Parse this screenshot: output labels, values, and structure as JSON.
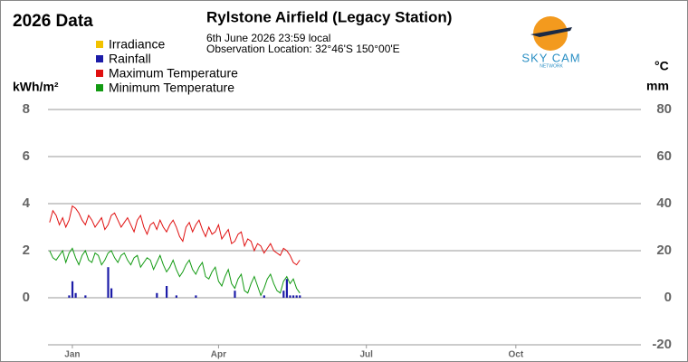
{
  "chart_data": {
    "type": "line",
    "corner_title": "2026 Data",
    "title": "Rylstone Airfield (Legacy Station)",
    "subtitle_lines": [
      "6th June 2026  23:59 local",
      "Observation Location: 32°46'S 150°00'E"
    ],
    "logo": {
      "text": "SKY CAM",
      "subtext": "NETWORK"
    },
    "ylabel": "kWh/m²",
    "y2labels": [
      "°C",
      "mm"
    ],
    "xlim": [
      0,
      365
    ],
    "xticks": [
      {
        "value": 15,
        "label": "Jan"
      },
      {
        "value": 105,
        "label": "Apr"
      },
      {
        "value": 196,
        "label": "Jul"
      },
      {
        "value": 288,
        "label": "Oct"
      }
    ],
    "ylim": [
      -2,
      8
    ],
    "yticks": [
      0,
      2,
      4,
      6,
      8
    ],
    "y2lim": [
      -20,
      80
    ],
    "y2ticks": [
      -20,
      0,
      20,
      40,
      60,
      80
    ],
    "grid": true,
    "legend": "top-left",
    "x": [
      1,
      3,
      5,
      7,
      9,
      11,
      13,
      15,
      17,
      19,
      21,
      23,
      25,
      27,
      29,
      31,
      33,
      35,
      37,
      39,
      41,
      43,
      45,
      47,
      49,
      51,
      53,
      55,
      57,
      59,
      61,
      63,
      65,
      67,
      69,
      71,
      73,
      75,
      77,
      79,
      81,
      83,
      85,
      87,
      89,
      91,
      93,
      95,
      97,
      99,
      101,
      103,
      105,
      107,
      109,
      111,
      113,
      115,
      117,
      119,
      121,
      123,
      125,
      127,
      129,
      131,
      133,
      135,
      137,
      139,
      141,
      143,
      145,
      147,
      149,
      151,
      153,
      155
    ],
    "series": [
      {
        "name": "Irradiance",
        "color": "#f2c200",
        "kind": "line",
        "values": [
          null,
          null,
          null,
          null,
          null,
          null,
          null,
          null,
          null,
          null,
          null,
          null,
          null,
          null,
          null,
          null,
          null,
          null,
          null,
          null,
          null,
          null,
          null,
          null,
          null,
          null,
          null,
          null,
          null,
          null,
          null,
          null,
          null,
          null,
          null,
          null,
          null,
          null,
          null,
          null,
          null,
          null,
          null,
          null,
          null,
          null,
          null,
          null,
          null,
          null,
          null,
          null,
          null,
          null,
          null,
          null,
          null,
          null,
          null,
          null,
          null,
          null,
          null,
          null,
          null,
          null,
          null,
          null,
          null,
          null,
          null,
          null,
          null,
          null,
          null,
          null,
          null,
          null
        ]
      },
      {
        "name": "Rainfall",
        "color": "#1c1ca8",
        "kind": "bar",
        "axis": "y2",
        "values": [
          0,
          0,
          0,
          0,
          0,
          0,
          1,
          7,
          2,
          0,
          0,
          1,
          0,
          0,
          0,
          0,
          0,
          0,
          13,
          4,
          0,
          0,
          0,
          0,
          0,
          0,
          0,
          0,
          0,
          0,
          0,
          0,
          0,
          2,
          0,
          0,
          5,
          0,
          0,
          1,
          0,
          0,
          0,
          0,
          0,
          1,
          0,
          0,
          0,
          0,
          0,
          0,
          0,
          0,
          0,
          0,
          0,
          3,
          0,
          0,
          0,
          0,
          0,
          0,
          0,
          0,
          1,
          0,
          0,
          0,
          0,
          0,
          3,
          8,
          1,
          1,
          1,
          1
        ]
      },
      {
        "name": "Maximum Temperature",
        "color": "#e01010",
        "kind": "line",
        "axis": "y2",
        "values": [
          32,
          37,
          35,
          31,
          34,
          30,
          33,
          39,
          38,
          36,
          33,
          31,
          35,
          33,
          30,
          32,
          34,
          29,
          31,
          35,
          36,
          33,
          30,
          32,
          34,
          31,
          28,
          33,
          35,
          30,
          27,
          31,
          32,
          29,
          33,
          30,
          28,
          31,
          33,
          30,
          26,
          24,
          30,
          32,
          28,
          31,
          33,
          29,
          26,
          30,
          27,
          28,
          31,
          25,
          27,
          29,
          23,
          24,
          27,
          28,
          22,
          25,
          24,
          20,
          23,
          22,
          19,
          21,
          23,
          20,
          19,
          18,
          21,
          20,
          18,
          15,
          14,
          16
        ]
      },
      {
        "name": "Minimum Temperature",
        "color": "#129a12",
        "kind": "line",
        "axis": "y2",
        "values": [
          20,
          17,
          16,
          18,
          20,
          15,
          19,
          21,
          17,
          14,
          18,
          20,
          16,
          15,
          19,
          18,
          14,
          16,
          19,
          20,
          17,
          15,
          18,
          19,
          16,
          14,
          17,
          18,
          13,
          15,
          17,
          16,
          12,
          15,
          18,
          14,
          11,
          13,
          16,
          12,
          9,
          11,
          14,
          16,
          12,
          10,
          13,
          15,
          9,
          8,
          11,
          13,
          7,
          5,
          9,
          12,
          6,
          4,
          8,
          10,
          3,
          2,
          6,
          9,
          5,
          1,
          4,
          8,
          10,
          6,
          3,
          2,
          7,
          9,
          6,
          8,
          4,
          2
        ]
      }
    ]
  }
}
